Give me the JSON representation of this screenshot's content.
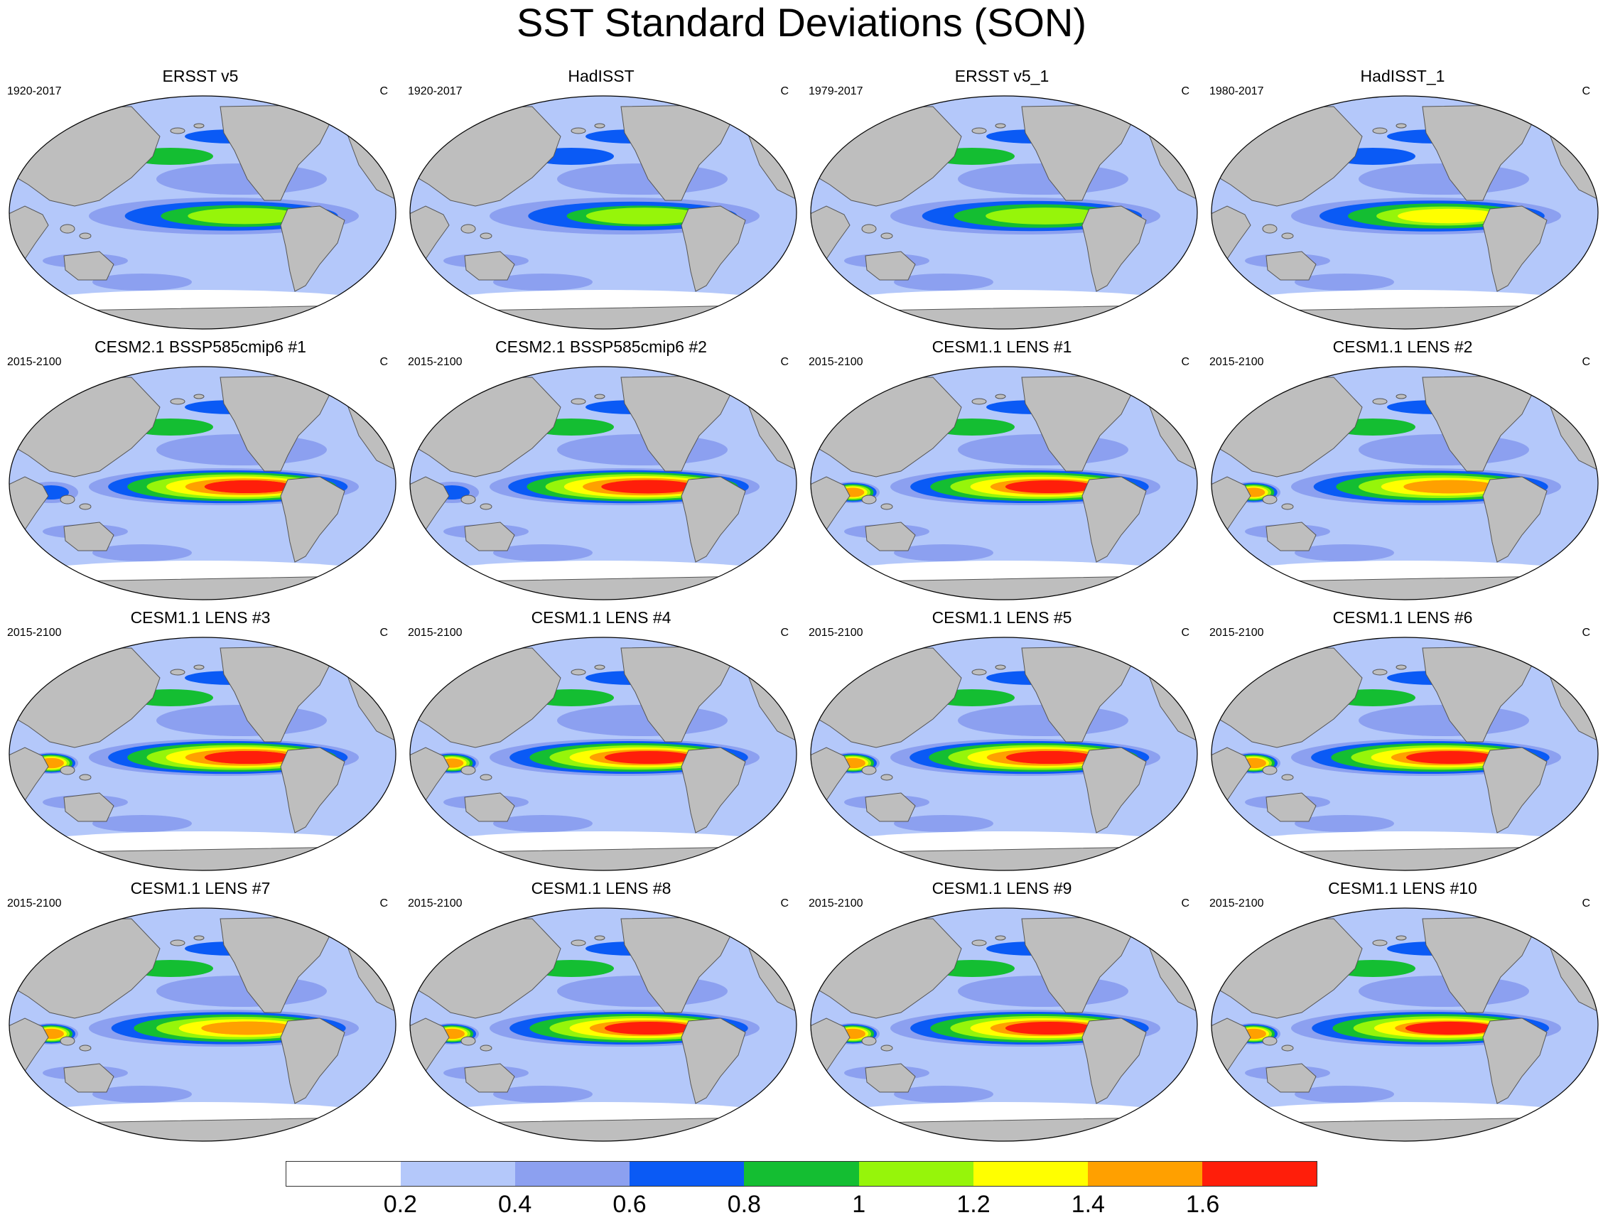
{
  "title": "SST Standard Deviations (SON)",
  "panels": [
    {
      "title": "ERSST v5",
      "period": "1920-2017",
      "units": "C",
      "enso": 1.05,
      "wpacific": 0.0,
      "npac": 0.9
    },
    {
      "title": "HadISST",
      "period": "1920-2017",
      "units": "C",
      "enso": 1.0,
      "wpacific": 0.0,
      "npac": 0.7
    },
    {
      "title": "ERSST v5_1",
      "period": "1979-2017",
      "units": "C",
      "enso": 1.15,
      "wpacific": 0.0,
      "npac": 0.9
    },
    {
      "title": "HadISST_1",
      "period": "1980-2017",
      "units": "C",
      "enso": 1.25,
      "wpacific": 0.0,
      "npac": 0.7
    },
    {
      "title": "CESM2.1 BSSP585cmip6 #1",
      "period": "2015-2100",
      "units": "C",
      "enso": 1.7,
      "wpacific": 0.7,
      "npac": 0.9
    },
    {
      "title": "CESM2.1 BSSP585cmip6 #2",
      "period": "2015-2100",
      "units": "C",
      "enso": 1.75,
      "wpacific": 0.7,
      "npac": 0.9
    },
    {
      "title": "CESM1.1 LENS #1",
      "period": "2015-2100",
      "units": "C",
      "enso": 1.65,
      "wpacific": 1.5,
      "npac": 0.85
    },
    {
      "title": "CESM1.1 LENS #2",
      "period": "2015-2100",
      "units": "C",
      "enso": 1.5,
      "wpacific": 1.5,
      "npac": 0.85
    },
    {
      "title": "CESM1.1 LENS #3",
      "period": "2015-2100",
      "units": "C",
      "enso": 1.7,
      "wpacific": 1.6,
      "npac": 0.85
    },
    {
      "title": "CESM1.1 LENS #4",
      "period": "2015-2100",
      "units": "C",
      "enso": 1.65,
      "wpacific": 1.5,
      "npac": 0.85
    },
    {
      "title": "CESM1.1 LENS #5",
      "period": "2015-2100",
      "units": "C",
      "enso": 1.7,
      "wpacific": 1.6,
      "npac": 0.9
    },
    {
      "title": "CESM1.1 LENS #6",
      "period": "2015-2100",
      "units": "C",
      "enso": 1.65,
      "wpacific": 1.6,
      "npac": 0.85
    },
    {
      "title": "CESM1.1 LENS #7",
      "period": "2015-2100",
      "units": "C",
      "enso": 1.5,
      "wpacific": 1.6,
      "npac": 0.85
    },
    {
      "title": "CESM1.1 LENS #8",
      "period": "2015-2100",
      "units": "C",
      "enso": 1.65,
      "wpacific": 1.6,
      "npac": 0.85
    },
    {
      "title": "CESM1.1 LENS #9",
      "period": "2015-2100",
      "units": "C",
      "enso": 1.65,
      "wpacific": 1.6,
      "npac": 0.85
    },
    {
      "title": "CESM1.1 LENS #10",
      "period": "2015-2100",
      "units": "C",
      "enso": 1.6,
      "wpacific": 1.6,
      "npac": 0.85
    }
  ],
  "colorbar": {
    "colors": [
      "#ffffff",
      "#b4c8fa",
      "#8ca0f0",
      "#0a5af5",
      "#14be32",
      "#96f50a",
      "#ffff00",
      "#ffa000",
      "#ff1e0a"
    ],
    "labels": [
      "0.2",
      "0.4",
      "0.6",
      "0.8",
      "1",
      "1.2",
      "1.4",
      "1.6"
    ]
  },
  "land_color": "#bebebe"
}
